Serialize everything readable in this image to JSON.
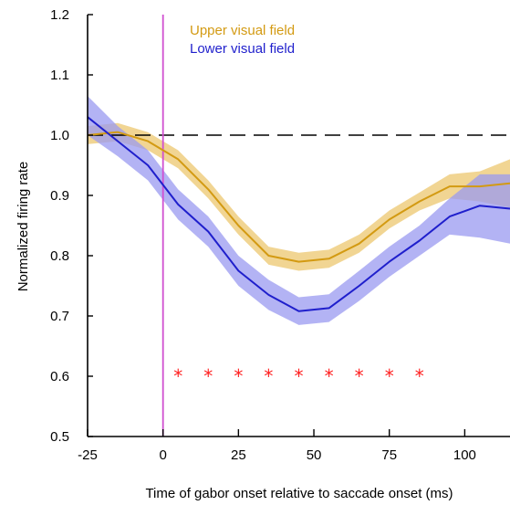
{
  "chart_data": {
    "type": "line",
    "title": "",
    "xlabel": "Time of gabor onset relative to saccade onset (ms)",
    "ylabel": "Normalized firing rate",
    "xlim": [
      -25,
      115
    ],
    "ylim": [
      0.5,
      1.2
    ],
    "x_ticks": [
      -25,
      0,
      25,
      50,
      75,
      100
    ],
    "y_ticks": [
      0.5,
      0.6,
      0.7,
      0.8,
      0.9,
      1.0,
      1.1,
      1.2
    ],
    "grid": false,
    "legend_position": "top-center",
    "reference_line": {
      "y": 1.0,
      "style": "dashed",
      "color": "#000000"
    },
    "vertical_line": {
      "x": 0,
      "color": "#d14fd1"
    },
    "series": [
      {
        "name": "Upper visual field",
        "color": "#d39a12",
        "band_color": "#ecc76f",
        "x": [
          -25,
          -15,
          -5,
          5,
          15,
          25,
          35,
          45,
          55,
          65,
          75,
          85,
          95,
          105,
          115
        ],
        "values": [
          1.0,
          1.005,
          0.99,
          0.96,
          0.91,
          0.85,
          0.8,
          0.79,
          0.795,
          0.82,
          0.86,
          0.89,
          0.915,
          0.915,
          0.92
        ],
        "lower": [
          0.985,
          0.99,
          0.975,
          0.945,
          0.895,
          0.835,
          0.785,
          0.775,
          0.78,
          0.805,
          0.845,
          0.875,
          0.895,
          0.89,
          0.88
        ],
        "upper": [
          1.015,
          1.02,
          1.005,
          0.975,
          0.925,
          0.865,
          0.815,
          0.805,
          0.81,
          0.835,
          0.875,
          0.905,
          0.935,
          0.94,
          0.96
        ]
      },
      {
        "name": "Lower visual field",
        "color": "#1f1fcc",
        "band_color": "#9a9af0",
        "x": [
          -25,
          -15,
          -5,
          5,
          15,
          25,
          35,
          45,
          55,
          65,
          75,
          85,
          95,
          105,
          115
        ],
        "values": [
          1.03,
          0.99,
          0.95,
          0.885,
          0.84,
          0.775,
          0.735,
          0.708,
          0.713,
          0.75,
          0.79,
          0.825,
          0.865,
          0.883,
          0.878
        ],
        "lower": [
          1.0,
          0.965,
          0.925,
          0.86,
          0.815,
          0.75,
          0.71,
          0.685,
          0.69,
          0.725,
          0.765,
          0.8,
          0.835,
          0.83,
          0.82
        ],
        "upper": [
          1.065,
          1.015,
          0.975,
          0.91,
          0.865,
          0.8,
          0.76,
          0.731,
          0.736,
          0.775,
          0.815,
          0.85,
          0.895,
          0.935,
          0.935
        ]
      }
    ],
    "significance_markers": {
      "symbol": "*",
      "color": "#ff1f1f",
      "y": 0.6,
      "x": [
        5,
        15,
        25,
        35,
        45,
        55,
        65,
        75,
        85
      ]
    }
  }
}
